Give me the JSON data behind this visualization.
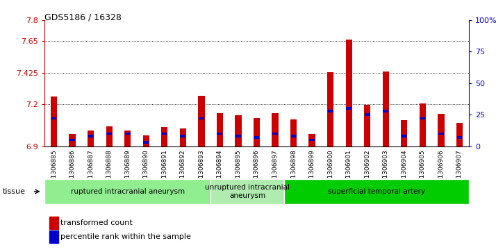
{
  "title": "GDS5186 / 16328",
  "samples": [
    "GSM1306885",
    "GSM1306886",
    "GSM1306887",
    "GSM1306888",
    "GSM1306889",
    "GSM1306890",
    "GSM1306891",
    "GSM1306892",
    "GSM1306893",
    "GSM1306894",
    "GSM1306895",
    "GSM1306896",
    "GSM1306897",
    "GSM1306898",
    "GSM1306899",
    "GSM1306900",
    "GSM1306901",
    "GSM1306902",
    "GSM1306903",
    "GSM1306904",
    "GSM1306905",
    "GSM1306906",
    "GSM1306907"
  ],
  "transformed_count": [
    7.255,
    6.985,
    7.01,
    7.04,
    7.01,
    6.975,
    7.035,
    7.025,
    7.26,
    7.135,
    7.12,
    7.1,
    7.135,
    7.09,
    6.985,
    7.43,
    7.66,
    7.195,
    7.435,
    7.085,
    7.205,
    7.13,
    7.065
  ],
  "percentile_rank": [
    22,
    5,
    8,
    10,
    10,
    3,
    10,
    8,
    22,
    10,
    8,
    7,
    10,
    8,
    5,
    28,
    30,
    25,
    28,
    8,
    22,
    10,
    7
  ],
  "groups": [
    {
      "label": "ruptured intracranial aneurysm",
      "start": 0,
      "end": 9,
      "color": "#90EE90"
    },
    {
      "label": "unruptured intracranial\naneurysm",
      "start": 9,
      "end": 13,
      "color": "#b0ecb0"
    },
    {
      "label": "superficial temporal artery",
      "start": 13,
      "end": 23,
      "color": "#00cc00"
    }
  ],
  "ylim_left": [
    6.9,
    7.8
  ],
  "yticks_left": [
    6.9,
    7.2,
    7.425,
    7.65,
    7.8
  ],
  "ytick_labels_left": [
    "6.9",
    "7.2",
    "7.425",
    "7.65",
    "7.8"
  ],
  "yticks_right": [
    0,
    25,
    50,
    75,
    100
  ],
  "ytick_labels_right": [
    "0",
    "25",
    "50",
    "75",
    "100%"
  ],
  "bar_color": "#cc0000",
  "percentile_color": "#0000cc",
  "bg_color": "#ffffff",
  "plot_bg": "#ffffff",
  "left_axis_color": "#cc0000",
  "right_axis_color": "#0000cc",
  "bar_width": 0.35,
  "legend_items": [
    {
      "label": "transformed count",
      "color": "#cc0000"
    },
    {
      "label": "percentile rank within the sample",
      "color": "#0000cc"
    }
  ]
}
